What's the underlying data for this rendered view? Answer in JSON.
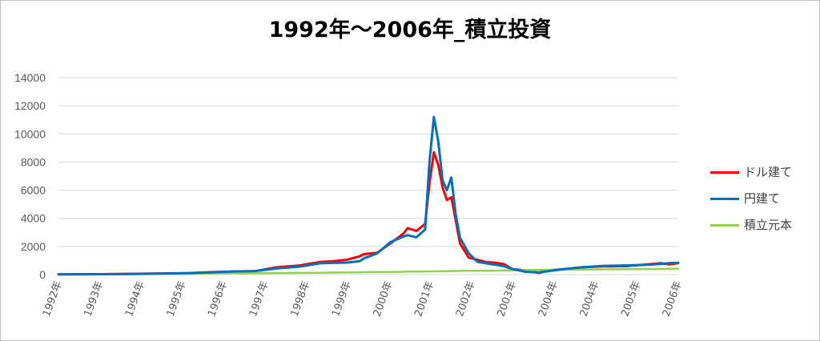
{
  "chart_data": {
    "type": "line",
    "title": "1992年～2006年_積立投資",
    "xlabel": "",
    "ylabel": "",
    "ylim": [
      0,
      14000
    ],
    "yticks": [
      0,
      2000,
      4000,
      6000,
      8000,
      10000,
      12000,
      14000
    ],
    "xlim": [
      1992.0,
      2006.2
    ],
    "categories": [
      "1992年",
      "1993年",
      "1994年",
      "1995年",
      "1996年",
      "1997年",
      "1998年",
      "1999年",
      "2000年",
      "2001年",
      "2002年",
      "2003年",
      "2004年",
      "2004年",
      "2005年",
      "2006年"
    ],
    "grid": true,
    "legend_position": "right",
    "x": [
      1992.0,
      1993.0,
      1994.0,
      1995.0,
      1995.5,
      1996.0,
      1996.5,
      1997.0,
      1997.5,
      1998.0,
      1998.3,
      1998.6,
      1998.9,
      1999.0,
      1999.3,
      1999.6,
      1999.9,
      2000.0,
      2000.2,
      2000.4,
      2000.5,
      2000.6,
      2000.7,
      2000.8,
      2000.9,
      2001.0,
      2001.1,
      2001.2,
      2001.4,
      2001.6,
      2001.8,
      2002.0,
      2002.2,
      2002.4,
      2002.7,
      2003.0,
      2003.3,
      2003.6,
      2004.0,
      2004.5,
      2005.0,
      2005.5,
      2005.8,
      2006.0,
      2006.2
    ],
    "series": [
      {
        "name": "ドル建て",
        "color": "#ff0000",
        "values": [
          10,
          30,
          60,
          110,
          170,
          210,
          240,
          520,
          640,
          900,
          950,
          1050,
          1300,
          1450,
          1550,
          2200,
          2900,
          3300,
          3100,
          3600,
          6500,
          8700,
          7800,
          6200,
          5300,
          5500,
          3900,
          2200,
          1200,
          1050,
          880,
          850,
          750,
          380,
          300,
          120,
          320,
          380,
          520,
          580,
          600,
          720,
          800,
          720,
          820
        ]
      },
      {
        "name": "円建て",
        "color": "#0070c0",
        "values": [
          10,
          30,
          50,
          100,
          160,
          220,
          250,
          430,
          550,
          800,
          830,
          850,
          950,
          1150,
          1500,
          2300,
          2700,
          2800,
          2650,
          3200,
          8000,
          11200,
          9500,
          6700,
          6000,
          6900,
          4300,
          2600,
          1500,
          900,
          800,
          700,
          600,
          400,
          200,
          150,
          280,
          400,
          520,
          620,
          650,
          700,
          750,
          820,
          840
        ]
      },
      {
        "name": "積立元本",
        "color": "#92d050",
        "values": [
          10,
          30,
          50,
          70,
          80,
          90,
          100,
          110,
          120,
          130,
          140,
          150,
          160,
          170,
          180,
          190,
          200,
          210,
          215,
          220,
          225,
          230,
          235,
          240,
          245,
          250,
          255,
          260,
          265,
          270,
          275,
          280,
          290,
          300,
          320,
          330,
          340,
          350,
          360,
          370,
          380,
          390,
          400,
          410,
          420
        ]
      }
    ]
  }
}
